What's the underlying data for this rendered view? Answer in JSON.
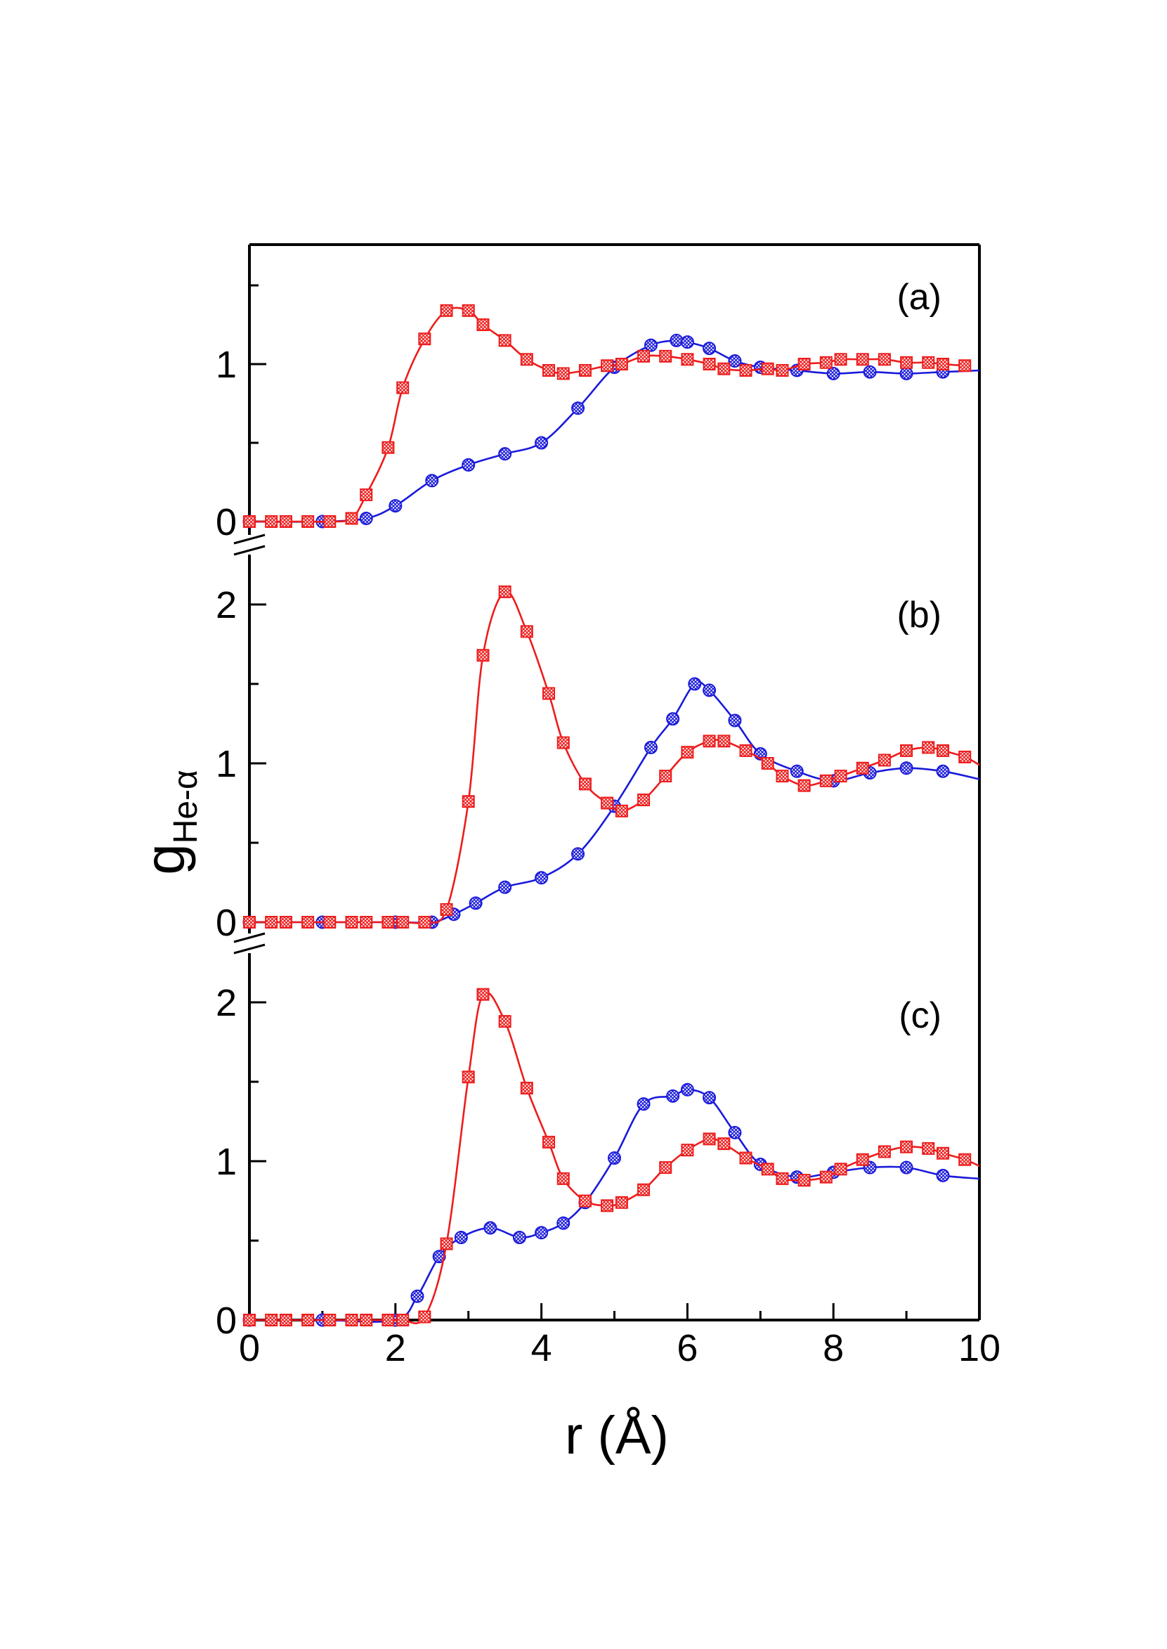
{
  "chart_data": {
    "type": "line",
    "xlabel": "r (Å)",
    "ylabel_main": "g",
    "ylabel_sub": "He-α",
    "xlim": [
      0,
      10
    ],
    "x_ticks": [
      "0",
      "2",
      "4",
      "6",
      "8",
      "10"
    ],
    "colors": {
      "red_series": "#ee1c1c",
      "blue_series": "#1a1adb",
      "axes": "#000000"
    },
    "markers": {
      "red_series": "square",
      "blue_series": "circle"
    },
    "panels": [
      {
        "label": "(a)",
        "ylim": [
          0,
          1.75
        ],
        "y_ticks": [
          "0",
          "1"
        ],
        "series": [
          {
            "marker": "square",
            "x": [
              0,
              0.3,
              0.5,
              0.8,
              1.1,
              1.4,
              1.6,
              1.9,
              2.1,
              2.4,
              2.7,
              3.0,
              3.2,
              3.5,
              3.8,
              4.1,
              4.3,
              4.6,
              4.9,
              5.1,
              5.4,
              5.7,
              6.0,
              6.3,
              6.5,
              6.8,
              7.1,
              7.3,
              7.6,
              7.9,
              8.1,
              8.4,
              8.7,
              9.0,
              9.3,
              9.5,
              9.8
            ],
            "y": [
              0,
              0,
              0,
              0,
              0,
              0.02,
              0.17,
              0.47,
              0.85,
              1.16,
              1.34,
              1.34,
              1.25,
              1.15,
              1.03,
              0.96,
              0.94,
              0.96,
              0.99,
              1.0,
              1.05,
              1.05,
              1.03,
              1.0,
              0.97,
              0.96,
              0.97,
              0.96,
              1.0,
              1.01,
              1.03,
              1.03,
              1.03,
              1.01,
              1.01,
              1.0,
              0.99
            ]
          },
          {
            "marker": "circle",
            "x": [
              0,
              1.0,
              1.6,
              2.0,
              2.5,
              3.0,
              3.5,
              4.0,
              4.5,
              5.0,
              5.5,
              5.85,
              6.0,
              6.3,
              6.65,
              7.0,
              7.5,
              8.0,
              8.5,
              9.0,
              9.5,
              10.0
            ],
            "y": [
              0,
              0,
              0.02,
              0.1,
              0.26,
              0.36,
              0.43,
              0.5,
              0.72,
              0.98,
              1.12,
              1.15,
              1.14,
              1.1,
              1.02,
              0.98,
              0.96,
              0.94,
              0.95,
              0.94,
              0.95,
              0.96
            ]
          }
        ]
      },
      {
        "label": "(b)",
        "ylim": [
          0,
          2.3
        ],
        "y_ticks": [
          "0",
          "1",
          "2"
        ],
        "series": [
          {
            "marker": "square",
            "x": [
              0,
              0.3,
              0.5,
              0.8,
              1.1,
              1.4,
              1.6,
              1.9,
              2.1,
              2.4,
              2.7,
              3.0,
              3.2,
              3.5,
              3.8,
              4.1,
              4.3,
              4.6,
              4.9,
              5.1,
              5.4,
              5.7,
              6.0,
              6.3,
              6.5,
              6.8,
              7.1,
              7.3,
              7.6,
              7.9,
              8.1,
              8.4,
              8.7,
              9.0,
              9.3,
              9.5,
              9.8,
              10.0
            ],
            "y": [
              0,
              0,
              0,
              0,
              0,
              0,
              0,
              0,
              0,
              0,
              0.08,
              0.76,
              1.68,
              2.08,
              1.83,
              1.44,
              1.13,
              0.87,
              0.75,
              0.7,
              0.77,
              0.92,
              1.07,
              1.14,
              1.14,
              1.08,
              1.0,
              0.92,
              0.86,
              0.89,
              0.92,
              0.97,
              1.02,
              1.08,
              1.1,
              1.08,
              1.04,
              0.99
            ]
          },
          {
            "marker": "circle",
            "x": [
              0,
              1.0,
              2.0,
              2.5,
              2.8,
              3.1,
              3.5,
              4.0,
              4.5,
              5.0,
              5.5,
              5.8,
              6.1,
              6.3,
              6.65,
              7.0,
              7.5,
              8.0,
              8.5,
              9.0,
              9.5,
              10.0
            ],
            "y": [
              0,
              0,
              0,
              0,
              0.05,
              0.12,
              0.22,
              0.28,
              0.43,
              0.73,
              1.1,
              1.28,
              1.5,
              1.46,
              1.27,
              1.06,
              0.95,
              0.89,
              0.94,
              0.97,
              0.95,
              0.9
            ]
          }
        ]
      },
      {
        "label": "(c)",
        "ylim": [
          0,
          2.3
        ],
        "y_ticks": [
          "0",
          "1",
          "2"
        ],
        "series": [
          {
            "marker": "square",
            "x": [
              0,
              0.3,
              0.5,
              0.8,
              1.1,
              1.4,
              1.6,
              1.9,
              2.1,
              2.4,
              2.7,
              3.0,
              3.2,
              3.5,
              3.8,
              4.1,
              4.3,
              4.6,
              4.9,
              5.1,
              5.4,
              5.7,
              6.0,
              6.3,
              6.5,
              6.8,
              7.1,
              7.3,
              7.6,
              7.9,
              8.1,
              8.4,
              8.7,
              9.0,
              9.3,
              9.5,
              9.8,
              10.0
            ],
            "y": [
              0,
              0,
              0,
              0,
              0,
              0,
              0,
              0,
              0,
              0.02,
              0.48,
              1.53,
              2.05,
              1.88,
              1.46,
              1.12,
              0.89,
              0.75,
              0.72,
              0.74,
              0.82,
              0.96,
              1.07,
              1.14,
              1.11,
              1.02,
              0.95,
              0.89,
              0.88,
              0.9,
              0.95,
              1.01,
              1.06,
              1.09,
              1.08,
              1.05,
              1.01,
              0.97
            ]
          },
          {
            "marker": "circle",
            "x": [
              0,
              1.0,
              2.0,
              2.3,
              2.6,
              2.9,
              3.3,
              3.7,
              4.0,
              4.3,
              4.6,
              5.0,
              5.4,
              5.8,
              6.0,
              6.3,
              6.65,
              7.0,
              7.5,
              8.0,
              8.5,
              9.0,
              9.5,
              10.0
            ],
            "y": [
              0,
              0,
              0,
              0.15,
              0.4,
              0.52,
              0.58,
              0.52,
              0.55,
              0.61,
              0.74,
              1.02,
              1.36,
              1.41,
              1.45,
              1.4,
              1.18,
              0.98,
              0.9,
              0.93,
              0.96,
              0.96,
              0.91,
              0.89
            ]
          }
        ]
      }
    ]
  }
}
